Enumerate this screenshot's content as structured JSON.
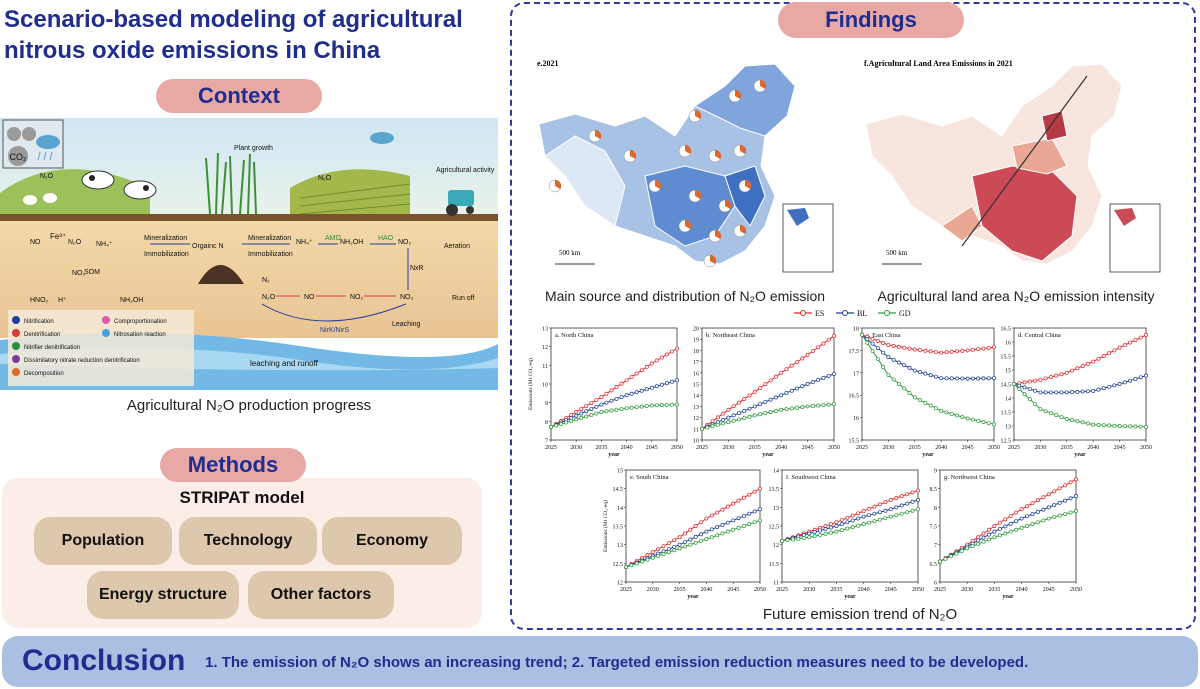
{
  "title": "Scenario-based modeling of agricultural nitrous oxide emissions in China",
  "sections": {
    "context": "Context",
    "methods": "Methods",
    "findings": "Findings"
  },
  "context": {
    "caption": "Agricultural N₂O production progress",
    "labels": {
      "co2": "CO₂",
      "plant_growth": "Plant growth",
      "agri_activity": "Agricultural activity",
      "mineralization": "Mineralization",
      "immobilization": "Immobilization",
      "organic_n": "Orgainc N",
      "amo": "AMO",
      "hao": "HAO",
      "nxr": "NxR",
      "aeration": "Aeration",
      "run_off": "Run off",
      "leaching": "Leaching",
      "leaching_runoff": "leaching and runoff",
      "som": "SOM",
      "nirk_nirs": "NirK/NirS"
    },
    "legend": [
      {
        "label": "Nitrification",
        "color": "#1f3fa0"
      },
      {
        "label": "Denitrification",
        "color": "#d93a3a"
      },
      {
        "label": "Nitrifier denitrification",
        "color": "#2e8b3d"
      },
      {
        "label": "Dissimilatory nitrate reduction denitrification",
        "color": "#7a3a9a"
      },
      {
        "label": "Decomposition",
        "color": "#e0662a"
      },
      {
        "label": "Comproportionation",
        "color": "#d85aa8"
      },
      {
        "label": "Nitrosation reaction",
        "color": "#4aa3d8"
      }
    ]
  },
  "methods": {
    "model": "STRIPAT model",
    "factors": [
      "Population",
      "Technology",
      "Economy",
      "Energy structure",
      "Other factors"
    ]
  },
  "findings": {
    "map1": {
      "label": "e.2021",
      "caption": "Main source and distribution of N₂O emission",
      "scale": "500 km"
    },
    "map2": {
      "label": "f.Agricultural Land Area Emissions in 2021",
      "caption": "Agricultural  land area N₂O emission intensity",
      "scale": "500 km"
    },
    "trend_caption": "Future emission trend of N₂O",
    "legend": [
      {
        "name": "ES",
        "color": "#e0282c"
      },
      {
        "name": "BL",
        "color": "#1f3f8f"
      },
      {
        "name": "GD",
        "color": "#2e9a3a"
      }
    ]
  },
  "conclusion": {
    "heading": "Conclusion",
    "text": "1. The emission of N₂O shows an increasing trend; 2. Targeted emission reduction measures need to be developed."
  },
  "chart_data": [
    {
      "type": "line",
      "title": "a. North China",
      "xlabel": "year",
      "ylabel": "Emissions (Mt CO₂-eq)",
      "x": [
        2025,
        2030,
        2035,
        2040,
        2045,
        2050
      ],
      "ylim": [
        7,
        13
      ],
      "yticks": [
        7,
        8,
        9,
        10,
        11,
        12,
        13
      ],
      "series": [
        {
          "name": "ES",
          "values": [
            7.7,
            8.5,
            9.3,
            10.2,
            11.1,
            11.9
          ]
        },
        {
          "name": "BL",
          "values": [
            7.7,
            8.3,
            8.9,
            9.4,
            9.8,
            10.2
          ]
        },
        {
          "name": "GD",
          "values": [
            7.7,
            8.1,
            8.5,
            8.7,
            8.85,
            8.9
          ]
        }
      ]
    },
    {
      "type": "line",
      "title": "b. Northeast China",
      "xlabel": "year",
      "ylabel": "",
      "x": [
        2025,
        2030,
        2035,
        2040,
        2045,
        2050
      ],
      "ylim": [
        10,
        20
      ],
      "yticks": [
        10,
        11,
        12,
        13,
        14,
        15,
        16,
        17,
        18,
        19,
        20
      ],
      "series": [
        {
          "name": "ES",
          "values": [
            11.0,
            12.7,
            14.3,
            16.0,
            17.6,
            19.3
          ]
        },
        {
          "name": "BL",
          "values": [
            11.0,
            12.0,
            13.0,
            14.0,
            15.0,
            15.9
          ]
        },
        {
          "name": "GD",
          "values": [
            11.0,
            11.6,
            12.2,
            12.7,
            13.0,
            13.2
          ]
        }
      ]
    },
    {
      "type": "line",
      "title": "c. East China",
      "xlabel": "year",
      "ylabel": "",
      "x": [
        2025,
        2030,
        2035,
        2040,
        2045,
        2050
      ],
      "ylim": [
        15.5,
        18.0
      ],
      "yticks": [
        15.5,
        16.0,
        16.5,
        17.0,
        17.5,
        18.0
      ],
      "series": [
        {
          "name": "ES",
          "values": [
            17.85,
            17.62,
            17.52,
            17.45,
            17.5,
            17.57
          ]
        },
        {
          "name": "BL",
          "values": [
            17.85,
            17.35,
            17.05,
            16.88,
            16.87,
            16.88
          ]
        },
        {
          "name": "GD",
          "values": [
            17.85,
            16.95,
            16.45,
            16.15,
            15.98,
            15.85
          ]
        }
      ]
    },
    {
      "type": "line",
      "title": "d. Central China",
      "xlabel": "year",
      "ylabel": "",
      "x": [
        2025,
        2030,
        2035,
        2040,
        2045,
        2050
      ],
      "ylim": [
        12.5,
        16.5
      ],
      "yticks": [
        12.5,
        13.0,
        13.5,
        14.0,
        14.5,
        15.0,
        15.5,
        16.0,
        16.5
      ],
      "series": [
        {
          "name": "ES",
          "values": [
            14.5,
            14.65,
            14.9,
            15.3,
            15.8,
            16.25
          ]
        },
        {
          "name": "BL",
          "values": [
            14.5,
            14.2,
            14.2,
            14.25,
            14.5,
            14.8
          ]
        },
        {
          "name": "GD",
          "values": [
            14.5,
            13.6,
            13.25,
            13.05,
            13.0,
            12.97
          ]
        }
      ]
    },
    {
      "type": "line",
      "title": "e. South China",
      "xlabel": "year",
      "ylabel": "Emissions (Mt CO₂-eq)",
      "x": [
        2025,
        2030,
        2035,
        2040,
        2045,
        2050
      ],
      "ylim": [
        12.0,
        15.0
      ],
      "yticks": [
        12.0,
        12.5,
        13.0,
        13.5,
        14.0,
        14.5,
        15.0
      ],
      "series": [
        {
          "name": "ES",
          "values": [
            12.4,
            12.8,
            13.2,
            13.7,
            14.1,
            14.5
          ]
        },
        {
          "name": "BL",
          "values": [
            12.4,
            12.7,
            13.0,
            13.35,
            13.65,
            13.95
          ]
        },
        {
          "name": "GD",
          "values": [
            12.4,
            12.65,
            12.9,
            13.15,
            13.4,
            13.65
          ]
        }
      ]
    },
    {
      "type": "line",
      "title": "f. Southwest China",
      "xlabel": "year",
      "ylabel": "",
      "x": [
        2025,
        2030,
        2035,
        2040,
        2045,
        2050
      ],
      "ylim": [
        11.0,
        14.0
      ],
      "yticks": [
        11.0,
        11.5,
        12.0,
        12.5,
        13.0,
        13.5,
        14.0
      ],
      "series": [
        {
          "name": "ES",
          "values": [
            12.1,
            12.35,
            12.6,
            12.9,
            13.2,
            13.45
          ]
        },
        {
          "name": "BL",
          "values": [
            12.1,
            12.3,
            12.5,
            12.75,
            12.95,
            13.2
          ]
        },
        {
          "name": "GD",
          "values": [
            12.1,
            12.2,
            12.35,
            12.55,
            12.75,
            12.95
          ]
        }
      ]
    },
    {
      "type": "line",
      "title": "g. Northwest China",
      "xlabel": "year",
      "ylabel": "",
      "x": [
        2025,
        2030,
        2035,
        2040,
        2045,
        2050
      ],
      "ylim": [
        6.0,
        9.0
      ],
      "yticks": [
        6.0,
        6.5,
        7.0,
        7.5,
        8.0,
        8.5,
        9.0
      ],
      "series": [
        {
          "name": "ES",
          "values": [
            6.55,
            7.0,
            7.5,
            7.95,
            8.35,
            8.75
          ]
        },
        {
          "name": "BL",
          "values": [
            6.55,
            6.95,
            7.35,
            7.7,
            8.0,
            8.3
          ]
        },
        {
          "name": "GD",
          "values": [
            6.55,
            6.9,
            7.2,
            7.45,
            7.7,
            7.9
          ]
        }
      ]
    }
  ]
}
